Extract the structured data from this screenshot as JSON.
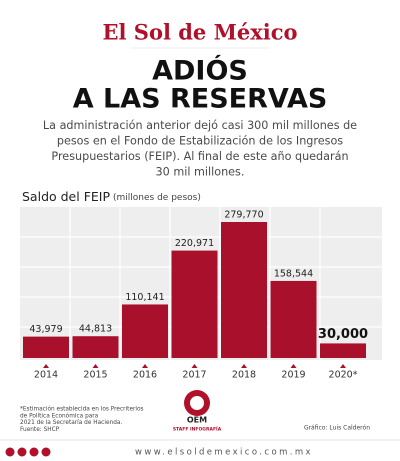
{
  "header": {
    "logo": "El Sol de México"
  },
  "headline": [
    "ADIÓS",
    "A LAS RESERVAS"
  ],
  "intro": [
    "La administración anterior dejó casi 300 mil millones de",
    "pesos en el Fondo de Estabilización de los Ingresos",
    "Presupuestarios (FEIP). Al final de este año quedarán",
    "30 mil millones."
  ],
  "chart_data": {
    "type": "bar",
    "title": "Saldo del FEIP",
    "subtitle": "(millones de pesos)",
    "categories": [
      "2014",
      "2015",
      "2016",
      "2017",
      "2018",
      "2019",
      "2020*"
    ],
    "values": [
      43979,
      44813,
      110141,
      220971,
      279770,
      158544,
      30000
    ],
    "value_labels": [
      "43,979",
      "44,813",
      "110,141",
      "220,971",
      "279,770",
      "158,544",
      "30,000"
    ],
    "color": "#a8102c"
  },
  "footnote": [
    "*Estimación establecida en los Precriterios",
    "de Política Económica para",
    "2021 de la Secretaría de Hacienda.",
    "Fuente: SHCP"
  ],
  "staff_logo": {
    "name": "OEM",
    "label": "STAFF INFOGRAFÍA"
  },
  "credit": "Gráfico: Luis Calderón",
  "footer": "www.elsoldemexico.com.mx"
}
